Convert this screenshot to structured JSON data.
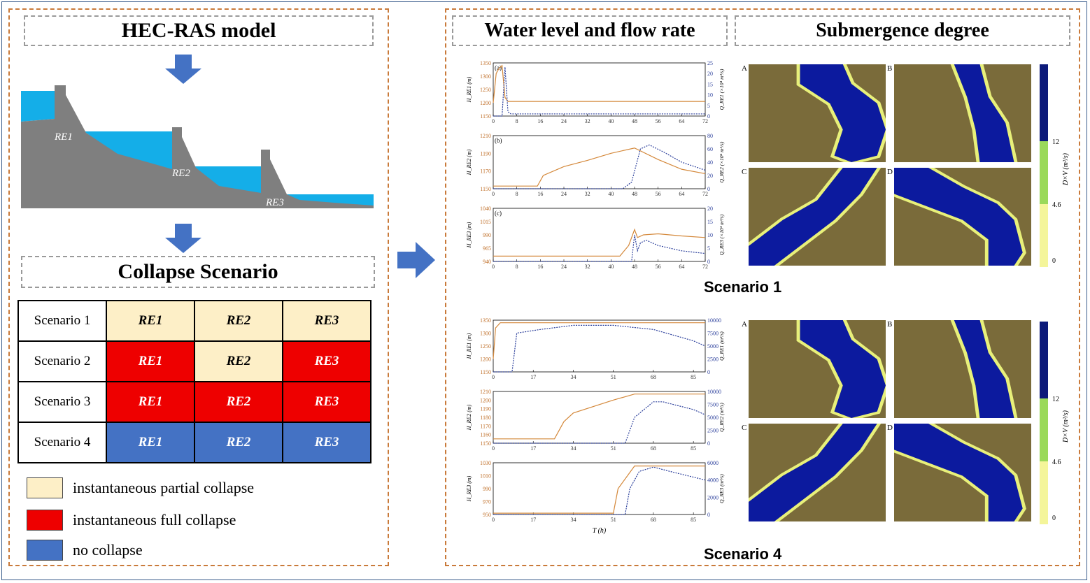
{
  "colors": {
    "partial": "#fdefc7",
    "full": "#ee0000",
    "none": "#4472c4",
    "water": "#14aee8",
    "dam": "#7f7f7f",
    "level_line": "#d4883a",
    "flow_line": "#2a3e9b",
    "river_map": "#0c1a9e",
    "terrain": "#7a6b3a",
    "arrow": "#4472c4"
  },
  "left": {
    "title": "HEC-RAS model",
    "dams": [
      "RE1",
      "RE2",
      "RE3"
    ],
    "scenario_title": "Collapse Scenario",
    "table": [
      {
        "label": "Scenario 1",
        "cells": [
          {
            "text": "RE1",
            "state": "partial"
          },
          {
            "text": "RE2",
            "state": "partial"
          },
          {
            "text": "RE3",
            "state": "partial"
          }
        ]
      },
      {
        "label": "Scenario 2",
        "cells": [
          {
            "text": "RE1",
            "state": "full"
          },
          {
            "text": "RE2",
            "state": "partial"
          },
          {
            "text": "RE3",
            "state": "full"
          }
        ]
      },
      {
        "label": "Scenario 3",
        "cells": [
          {
            "text": "RE1",
            "state": "full"
          },
          {
            "text": "RE2",
            "state": "full"
          },
          {
            "text": "RE3",
            "state": "full"
          }
        ]
      },
      {
        "label": "Scenario 4",
        "cells": [
          {
            "text": "RE1",
            "state": "none"
          },
          {
            "text": "RE2",
            "state": "none"
          },
          {
            "text": "RE3",
            "state": "none"
          }
        ]
      }
    ],
    "legend": [
      {
        "text": "instantaneous partial collapse",
        "state": "partial"
      },
      {
        "text": "instantaneous full collapse",
        "state": "full"
      },
      {
        "text": "no collapse",
        "state": "none"
      }
    ]
  },
  "right": {
    "title_left": "Water level and flow rate",
    "title_right": "Submergence degree",
    "scenario1_caption": "Scenario 1",
    "scenario4_caption": "Scenario 4",
    "map_letters": [
      "A",
      "B",
      "C",
      "D"
    ],
    "colorbar": {
      "label": "D×V (m²/s)",
      "ticks": [
        "12",
        "4.6",
        "0"
      ]
    }
  },
  "chart_data": [
    {
      "type": "line",
      "panel": "(a)",
      "ylabel": "H_RE1 (m)",
      "ylabel_right": "Q_RE1 (×10⁴ m³/s)",
      "x_ticks": [
        "0",
        "8",
        "16",
        "24",
        "32",
        "40",
        "48",
        "56",
        "64",
        "72"
      ],
      "y_ticks": [
        "1350",
        "1300",
        "1250",
        "1200",
        "1150"
      ],
      "y2_ticks": [
        "25",
        "20",
        "15",
        "10",
        "5",
        "0"
      ],
      "xlim": [
        0,
        72
      ],
      "ylim": [
        1150,
        1350
      ],
      "y2lim": [
        0,
        25
      ],
      "series": [
        {
          "x": [
            0,
            1,
            2,
            3,
            4,
            5,
            72
          ],
          "values": [
            1200,
            1310,
            1330,
            1340,
            1220,
            1205,
            1205
          ]
        },
        {
          "x": [
            0,
            3,
            4,
            5,
            6,
            72
          ],
          "values": [
            0,
            0,
            23,
            2,
            1,
            1
          ]
        }
      ]
    },
    {
      "type": "line",
      "panel": "(b)",
      "ylabel": "H_RE2 (m)",
      "ylabel_right": "Q_RE2 (×10⁴ m³/s)",
      "x_ticks": [
        "0",
        "8",
        "16",
        "24",
        "32",
        "40",
        "48",
        "56",
        "64",
        "72"
      ],
      "y_ticks": [
        "1210",
        "1190",
        "1170",
        "1150"
      ],
      "y2_ticks": [
        "80",
        "60",
        "40",
        "20",
        "0"
      ],
      "xlim": [
        0,
        72
      ],
      "ylim": [
        1150,
        1210
      ],
      "y2lim": [
        0,
        80
      ],
      "series": [
        {
          "x": [
            0,
            15,
            17,
            24,
            32,
            40,
            48,
            56,
            64,
            72
          ],
          "values": [
            1153,
            1153,
            1165,
            1175,
            1182,
            1190,
            1196,
            1183,
            1172,
            1167
          ]
        },
        {
          "x": [
            0,
            44,
            47,
            50,
            53,
            58,
            64,
            72
          ],
          "values": [
            0,
            0,
            10,
            60,
            66,
            55,
            40,
            28
          ]
        }
      ]
    },
    {
      "type": "line",
      "panel": "(c)",
      "ylabel": "H_RE3 (m)",
      "ylabel_right": "Q_RE3 (×10⁴ m³/s)",
      "x_ticks": [
        "0",
        "8",
        "16",
        "24",
        "32",
        "40",
        "48",
        "56",
        "64",
        "72"
      ],
      "y_ticks": [
        "1040",
        "1015",
        "990",
        "965",
        "940"
      ],
      "y2_ticks": [
        "20",
        "15",
        "10",
        "5",
        "0"
      ],
      "xlim": [
        0,
        72
      ],
      "ylim": [
        940,
        1040
      ],
      "y2lim": [
        0,
        20
      ],
      "series": [
        {
          "x": [
            0,
            43,
            46,
            48,
            49,
            51,
            56,
            64,
            72
          ],
          "values": [
            950,
            950,
            970,
            1000,
            985,
            990,
            992,
            988,
            985
          ]
        },
        {
          "x": [
            0,
            47,
            48,
            49,
            50,
            52,
            56,
            64,
            72
          ],
          "values": [
            0,
            0,
            10,
            4,
            7,
            8,
            6,
            4,
            3
          ]
        }
      ]
    },
    {
      "type": "line",
      "ylabel": "H_RE1 (m)",
      "ylabel_right": "Q_RE1 (m³/s)",
      "x_ticks": [
        "0",
        "17",
        "34",
        "51",
        "68",
        "85"
      ],
      "y_ticks": [
        "1350",
        "1300",
        "1250",
        "1200",
        "1150"
      ],
      "y2_ticks": [
        "10000",
        "7500",
        "5000",
        "2500",
        "0"
      ],
      "xlim": [
        0,
        90
      ],
      "ylim": [
        1150,
        1350
      ],
      "y2lim": [
        0,
        10000
      ],
      "series": [
        {
          "x": [
            0,
            1,
            3,
            5,
            90
          ],
          "values": [
            1200,
            1320,
            1340,
            1340,
            1340
          ]
        },
        {
          "x": [
            0,
            8,
            10,
            20,
            34,
            51,
            68,
            85,
            90
          ],
          "values": [
            0,
            0,
            7500,
            8200,
            9000,
            9000,
            8200,
            6000,
            5000
          ]
        }
      ]
    },
    {
      "type": "line",
      "ylabel": "H_RE2 (m)",
      "ylabel_right": "Q_RE2 (m³/s)",
      "x_ticks": [
        "0",
        "17",
        "34",
        "51",
        "68",
        "85"
      ],
      "y_ticks": [
        "1210",
        "1200",
        "1190",
        "1180",
        "1170",
        "1160",
        "1150"
      ],
      "y2_ticks": [
        "10000",
        "7500",
        "5000",
        "2500",
        "0"
      ],
      "xlim": [
        0,
        90
      ],
      "ylim": [
        1150,
        1210
      ],
      "y2lim": [
        0,
        10000
      ],
      "series": [
        {
          "x": [
            0,
            26,
            30,
            34,
            51,
            60,
            90
          ],
          "values": [
            1155,
            1155,
            1175,
            1185,
            1200,
            1207,
            1207
          ]
        },
        {
          "x": [
            0,
            56,
            60,
            68,
            72,
            85,
            90
          ],
          "values": [
            0,
            0,
            5000,
            8000,
            8000,
            6500,
            5500
          ]
        }
      ]
    },
    {
      "type": "line",
      "ylabel": "H_RE3 (m)",
      "ylabel_right": "Q_RE3 (m³/s)",
      "xlabel": "T (h)",
      "x_ticks": [
        "0",
        "17",
        "34",
        "51",
        "68",
        "85"
      ],
      "y_ticks": [
        "1030",
        "1010",
        "990",
        "970",
        "950"
      ],
      "y2_ticks": [
        "6000",
        "4000",
        "2000",
        "0"
      ],
      "xlim": [
        0,
        90
      ],
      "ylim": [
        950,
        1030
      ],
      "y2lim": [
        0,
        6000
      ],
      "series": [
        {
          "x": [
            0,
            51,
            53,
            60,
            90
          ],
          "values": [
            952,
            952,
            990,
            1025,
            1025
          ]
        },
        {
          "x": [
            0,
            56,
            58,
            62,
            68,
            75,
            90
          ],
          "values": [
            0,
            0,
            3000,
            5000,
            5500,
            5000,
            4000
          ]
        }
      ]
    }
  ]
}
